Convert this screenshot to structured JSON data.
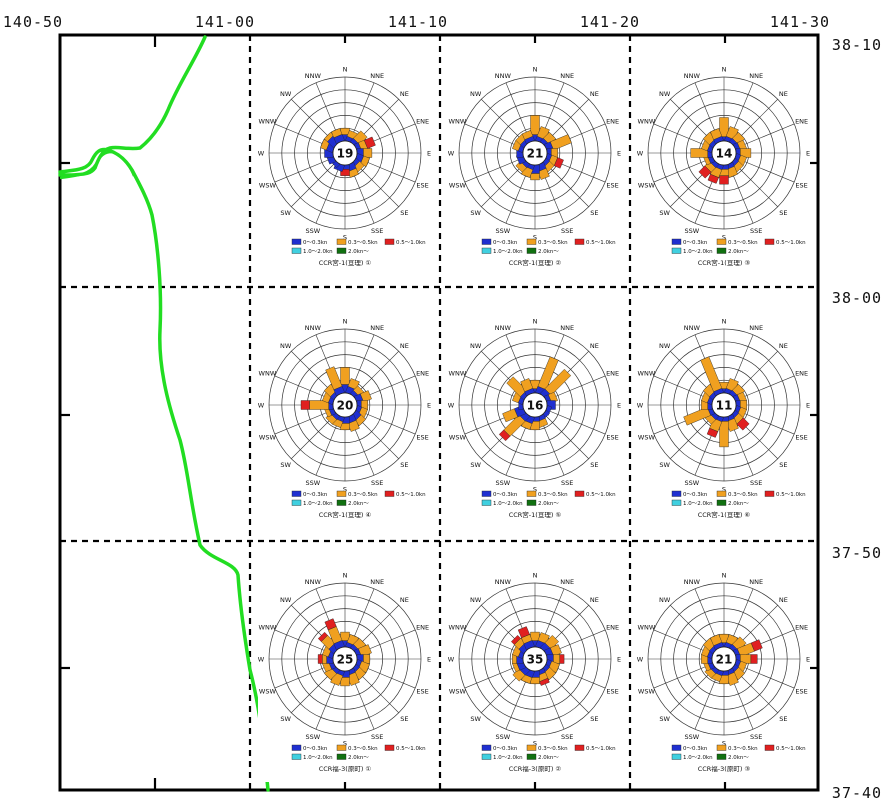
{
  "axis_labels": {
    "top": [
      "140-50",
      "141-00",
      "141-10",
      "141-20",
      "141-30"
    ],
    "right": [
      "38-10",
      "38-00",
      "37-50",
      "37-40"
    ]
  },
  "colors": {
    "frame": "#000000",
    "coast": "#22dd22",
    "speed_bins": [
      "#1f2fd0",
      "#f0a020",
      "#e02020",
      "#40d0e0",
      "#107010"
    ]
  },
  "legend": {
    "entries": [
      "0～0.3kn",
      "0.3～0.5kn",
      "0.5～1.0kn",
      "1.0～2.0kn",
      "2.0kn～"
    ]
  },
  "directions": [
    "N",
    "NNE",
    "NE",
    "ENE",
    "E",
    "ESE",
    "SE",
    "SSE",
    "S",
    "SSW",
    "SW",
    "WSW",
    "W",
    "WNW",
    "NW",
    "NNW"
  ],
  "chart_data": [
    {
      "type": "rose",
      "caption": "CCR宮-1(亘理) ①",
      "center": "19",
      "rmax_pct": 30,
      "values": [
        [
          3,
          3,
          0
        ],
        [
          2,
          3,
          0
        ],
        [
          2,
          5,
          0
        ],
        [
          2,
          3,
          4
        ],
        [
          3,
          4,
          0
        ],
        [
          3,
          3,
          0
        ],
        [
          2,
          3,
          0
        ],
        [
          3,
          3,
          0
        ],
        [
          2,
          0,
          3
        ],
        [
          3,
          0,
          0
        ],
        [
          2,
          0,
          0
        ],
        [
          3,
          0,
          0
        ],
        [
          4,
          0,
          0
        ],
        [
          3,
          3,
          0
        ],
        [
          4,
          2,
          0
        ],
        [
          3,
          3,
          0
        ]
      ]
    },
    {
      "type": "rose",
      "caption": "CCR宮-1(亘理) ②",
      "center": "21",
      "rmax_pct": 30,
      "values": [
        [
          3,
          9,
          0
        ],
        [
          2,
          5,
          0
        ],
        [
          2,
          4,
          0
        ],
        [
          3,
          9,
          0
        ],
        [
          2,
          3,
          0
        ],
        [
          2,
          3,
          3
        ],
        [
          2,
          3,
          0
        ],
        [
          3,
          4,
          0
        ],
        [
          4,
          3,
          0
        ],
        [
          2,
          4,
          0
        ],
        [
          2,
          3,
          0
        ],
        [
          3,
          0,
          0
        ],
        [
          3,
          0,
          0
        ],
        [
          2,
          3,
          0
        ],
        [
          2,
          3,
          0
        ],
        [
          2,
          3,
          0
        ]
      ]
    },
    {
      "type": "rose",
      "caption": "CCR宮-1(亘理) ③",
      "center": "14",
      "rmax_pct": 30,
      "values": [
        [
          2,
          9,
          0
        ],
        [
          2,
          5,
          0
        ],
        [
          2,
          4,
          0
        ],
        [
          2,
          3,
          0
        ],
        [
          2,
          5,
          0
        ],
        [
          2,
          3,
          0
        ],
        [
          2,
          3,
          0
        ],
        [
          2,
          4,
          0
        ],
        [
          2,
          3,
          4
        ],
        [
          2,
          4,
          3
        ],
        [
          2,
          3,
          4
        ],
        [
          2,
          2,
          0
        ],
        [
          2,
          8,
          0
        ],
        [
          2,
          3,
          0
        ],
        [
          2,
          4,
          0
        ],
        [
          2,
          4,
          0
        ]
      ]
    },
    {
      "type": "rose",
      "caption": "CCR宮-1(亘理) ④",
      "center": "20",
      "rmax_pct": 30,
      "values": [
        [
          4,
          8,
          0
        ],
        [
          3,
          4,
          0
        ],
        [
          2,
          3,
          0
        ],
        [
          3,
          4,
          0
        ],
        [
          2,
          3,
          0
        ],
        [
          2,
          3,
          0
        ],
        [
          3,
          3,
          0
        ],
        [
          3,
          4,
          0
        ],
        [
          3,
          3,
          0
        ],
        [
          2,
          3,
          0
        ],
        [
          2,
          3,
          0
        ],
        [
          2,
          2,
          0
        ],
        [
          2,
          9,
          4
        ],
        [
          2,
          3,
          0
        ],
        [
          2,
          4,
          0
        ],
        [
          3,
          10,
          0
        ]
      ]
    },
    {
      "type": "rose",
      "caption": "CCR宮-1(亘理) ⑤",
      "center": "16",
      "rmax_pct": 30,
      "values": [
        [
          2,
          4,
          0
        ],
        [
          3,
          15,
          0
        ],
        [
          3,
          13,
          0
        ],
        [
          2,
          3,
          0
        ],
        [
          4,
          0,
          0
        ],
        [
          2,
          0,
          0
        ],
        [
          2,
          0,
          0
        ],
        [
          2,
          3,
          0
        ],
        [
          2,
          4,
          0
        ],
        [
          3,
          3,
          0
        ],
        [
          3,
          10,
          3
        ],
        [
          4,
          6,
          0
        ],
        [
          2,
          0,
          0
        ],
        [
          2,
          3,
          0
        ],
        [
          2,
          9,
          0
        ],
        [
          2,
          5,
          0
        ]
      ]
    },
    {
      "type": "rose",
      "caption": "CCR宮-1(亘理) ⑥",
      "center": "11",
      "rmax_pct": 30,
      "values": [
        [
          2,
          3,
          0
        ],
        [
          2,
          5,
          0
        ],
        [
          2,
          4,
          0
        ],
        [
          2,
          3,
          0
        ],
        [
          2,
          3,
          0
        ],
        [
          2,
          3,
          0
        ],
        [
          2,
          3,
          4
        ],
        [
          2,
          5,
          0
        ],
        [
          2,
          12,
          0
        ],
        [
          2,
          5,
          3
        ],
        [
          2,
          3,
          0
        ],
        [
          2,
          12,
          0
        ],
        [
          2,
          3,
          0
        ],
        [
          2,
          3,
          0
        ],
        [
          2,
          4,
          0
        ],
        [
          2,
          16,
          0
        ]
      ]
    },
    {
      "type": "rose",
      "caption": "CCR福-3(原町) ①",
      "center": "25",
      "rmax_pct": 30,
      "values": [
        [
          3,
          4,
          0
        ],
        [
          2,
          4,
          0
        ],
        [
          2,
          4,
          0
        ],
        [
          2,
          5,
          0
        ],
        [
          3,
          3,
          0
        ],
        [
          2,
          4,
          0
        ],
        [
          2,
          4,
          0
        ],
        [
          2,
          5,
          0
        ],
        [
          3,
          4,
          0
        ],
        [
          2,
          5,
          0
        ],
        [
          2,
          4,
          0
        ],
        [
          2,
          3,
          0
        ],
        [
          3,
          2,
          2
        ],
        [
          2,
          3,
          0
        ],
        [
          3,
          5,
          2
        ],
        [
          3,
          7,
          4
        ]
      ]
    },
    {
      "type": "rose",
      "caption": "CCR福-3(原町) ②",
      "center": "35",
      "rmax_pct": 30,
      "values": [
        [
          3,
          4,
          0
        ],
        [
          3,
          4,
          0
        ],
        [
          3,
          5,
          0
        ],
        [
          3,
          4,
          0
        ],
        [
          3,
          3,
          2
        ],
        [
          2,
          4,
          0
        ],
        [
          2,
          4,
          0
        ],
        [
          2,
          3,
          2
        ],
        [
          3,
          3,
          0
        ],
        [
          3,
          3,
          0
        ],
        [
          3,
          4,
          0
        ],
        [
          3,
          2,
          0
        ],
        [
          3,
          2,
          0
        ],
        [
          2,
          3,
          0
        ],
        [
          3,
          3,
          2
        ],
        [
          3,
          3,
          4
        ]
      ]
    },
    {
      "type": "rose",
      "caption": "CCR福-3(原町) ③",
      "center": "21",
      "rmax_pct": 30,
      "values": [
        [
          2,
          4,
          0
        ],
        [
          2,
          4,
          0
        ],
        [
          2,
          5,
          0
        ],
        [
          2,
          7,
          4
        ],
        [
          2,
          5,
          3
        ],
        [
          2,
          3,
          0
        ],
        [
          2,
          4,
          0
        ],
        [
          2,
          5,
          0
        ],
        [
          2,
          4,
          0
        ],
        [
          2,
          3,
          0
        ],
        [
          2,
          3,
          0
        ],
        [
          2,
          2,
          0
        ],
        [
          2,
          3,
          0
        ],
        [
          2,
          3,
          0
        ],
        [
          2,
          4,
          0
        ],
        [
          2,
          4,
          0
        ]
      ]
    }
  ]
}
